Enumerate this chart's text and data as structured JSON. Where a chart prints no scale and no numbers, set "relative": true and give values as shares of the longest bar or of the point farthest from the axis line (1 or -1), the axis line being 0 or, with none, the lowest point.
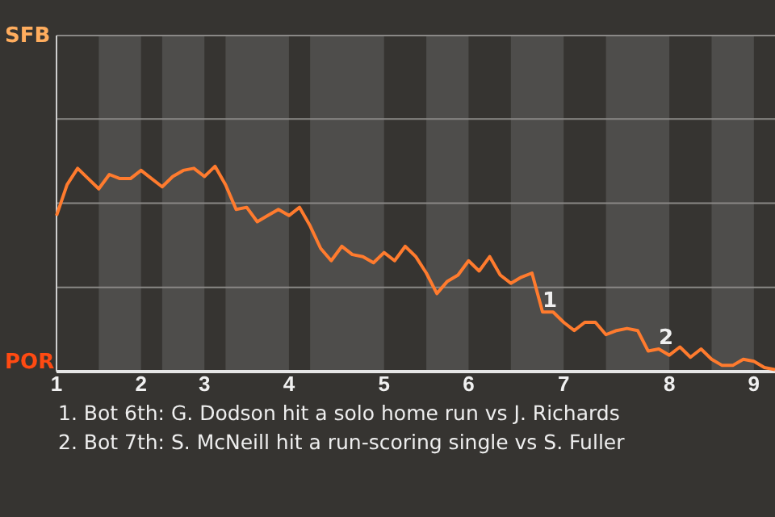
{
  "chart_data": {
    "type": "line",
    "relative": true,
    "categories": [
      "1",
      null,
      null,
      null,
      null,
      null,
      null,
      null,
      "2",
      null,
      null,
      null,
      null,
      null,
      "3",
      null,
      null,
      null,
      null,
      null,
      null,
      null,
      "4",
      null,
      null,
      null,
      null,
      null,
      null,
      null,
      null,
      "5",
      null,
      null,
      null,
      null,
      null,
      null,
      null,
      "6",
      null,
      null,
      null,
      null,
      null,
      null,
      null,
      null,
      "7",
      null,
      null,
      null,
      null,
      null,
      null,
      null,
      null,
      null,
      "8",
      null,
      null,
      null,
      null,
      null,
      null,
      null,
      "9",
      null,
      null
    ],
    "series": [
      {
        "color": "#ff7b2e",
        "values": [
          0.76,
          0.91,
          0.99,
          0.94,
          0.89,
          0.96,
          0.94,
          0.94,
          0.98,
          0.94,
          0.9,
          0.95,
          0.98,
          0.99,
          0.95,
          1,
          0.91,
          0.79,
          0.8,
          0.73,
          0.76,
          0.79,
          0.76,
          0.8,
          0.71,
          0.6,
          0.54,
          0.61,
          0.57,
          0.56,
          0.53,
          0.58,
          0.54,
          0.61,
          0.56,
          0.48,
          0.38,
          0.44,
          0.47,
          0.54,
          0.49,
          0.56,
          0.47,
          0.43,
          0.46,
          0.48,
          0.29,
          0.29,
          0.24,
          0.2,
          0.24,
          0.24,
          0.18,
          0.2,
          0.21,
          0.2,
          0.1,
          0.11,
          0.08,
          0.12,
          0.07,
          0.11,
          0.06,
          0.03,
          0.03,
          0.06,
          0.05,
          0.02,
          0.01
        ]
      }
    ],
    "marker": "none",
    "ref_lines": [
      {
        "axis": "y",
        "value": 0.41,
        "color": "#8a8886"
      },
      {
        "axis": "y",
        "value": 0.82,
        "color": "#8a8886"
      },
      {
        "axis": "y",
        "value": 1.23,
        "color": "#8a8886"
      }
    ],
    "annotations": [
      "SFB",
      "POR",
      {
        "text": "1",
        "y": 0.29
      },
      {
        "text": "2",
        "y": 0.11
      },
      "1. Bot 6th: G. Dodson hit a solo home run vs J. Richards",
      "2. Bot 7th: S. McNeill hit a run-scoring single vs S. Fuller"
    ]
  }
}
